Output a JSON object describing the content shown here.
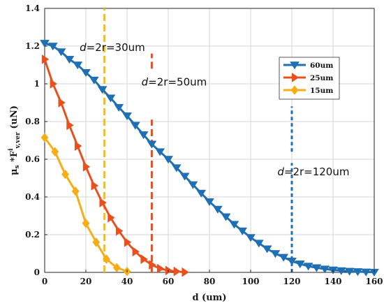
{
  "chart_data": {
    "type": "line",
    "xlabel": "d (um)",
    "ylabel_parts": {
      "mu": "μ",
      "mu_sub": "s",
      "star": " *F",
      "sup": "i",
      "sub": "v,ver",
      "unit": "  (uN)"
    },
    "xlim": [
      0,
      160
    ],
    "ylim": [
      0,
      1.4
    ],
    "xticks": [
      0,
      20,
      40,
      60,
      80,
      100,
      120,
      140,
      160
    ],
    "yticks": [
      0,
      0.2,
      0.4,
      0.6,
      0.8,
      1,
      1.2,
      1.4
    ],
    "ytick_labels": [
      "0",
      "0.2",
      "0.4",
      "0.6",
      "0.8",
      "1",
      "1.2",
      "1.4"
    ],
    "grid": true,
    "legend_position": "top-right",
    "series": [
      {
        "name": "60um",
        "color": "#1f6fb4",
        "marker": "triangle-down",
        "x": [
          0,
          4,
          8,
          12,
          16,
          20,
          24,
          28,
          32,
          36,
          40,
          44,
          48,
          52,
          56,
          60,
          64,
          68,
          72,
          76,
          80,
          84,
          88,
          92,
          96,
          100,
          104,
          108,
          112,
          116,
          120,
          124,
          128,
          132,
          136,
          140,
          144,
          148,
          152,
          156,
          160
        ],
        "y": [
          1.215,
          1.2,
          1.17,
          1.13,
          1.1,
          1.06,
          1.02,
          0.97,
          0.925,
          0.875,
          0.83,
          0.78,
          0.73,
          0.68,
          0.64,
          0.6,
          0.555,
          0.51,
          0.465,
          0.42,
          0.375,
          0.335,
          0.295,
          0.255,
          0.22,
          0.185,
          0.155,
          0.125,
          0.1,
          0.08,
          0.06,
          0.045,
          0.033,
          0.025,
          0.018,
          0.013,
          0.009,
          0.006,
          0.004,
          0.002,
          0.001
        ]
      },
      {
        "name": "25um",
        "color": "#e8501d",
        "marker": "triangle-right",
        "x": [
          0,
          4,
          8,
          12,
          16,
          20,
          24,
          28,
          32,
          36,
          40,
          44,
          48,
          52,
          56,
          60,
          64,
          68
        ],
        "y": [
          1.13,
          1.0,
          0.9,
          0.78,
          0.67,
          0.56,
          0.46,
          0.37,
          0.29,
          0.22,
          0.16,
          0.11,
          0.07,
          0.04,
          0.02,
          0.01,
          0.005,
          0.001
        ]
      },
      {
        "name": "15um",
        "color": "#f5ae16",
        "marker": "diamond",
        "x": [
          0,
          5,
          10,
          15,
          20,
          25,
          30,
          35,
          40
        ],
        "y": [
          0.715,
          0.64,
          0.52,
          0.43,
          0.26,
          0.16,
          0.07,
          0.025,
          0.005
        ]
      }
    ],
    "vertical_lines": [
      {
        "x": 29,
        "y_range": [
          0,
          1.4
        ],
        "color": "#f3c020",
        "dash": "long"
      },
      {
        "x": 52,
        "y_range": [
          0,
          0.81
        ],
        "color": "#e8501d",
        "dash": "long"
      },
      {
        "x": 52,
        "y_range": [
          1.08,
          1.16
        ],
        "color": "#e8501d",
        "dash": "long"
      },
      {
        "x": 120,
        "y_range": [
          0,
          0.58
        ],
        "color": "#1f6fb4",
        "dash": "short"
      },
      {
        "x": 120,
        "y_range": [
          0.64,
          0.88
        ],
        "color": "#1f6fb4",
        "dash": "short"
      }
    ],
    "annotations": [
      {
        "prefix": "d",
        "text": "=2r=30um",
        "x": 17,
        "y": 1.175
      },
      {
        "prefix": "d",
        "text": "=2r=50um",
        "x": 47,
        "y": 0.99
      },
      {
        "prefix": "d",
        "text": "=2r=120um",
        "x": 113,
        "y": 0.515
      }
    ]
  }
}
